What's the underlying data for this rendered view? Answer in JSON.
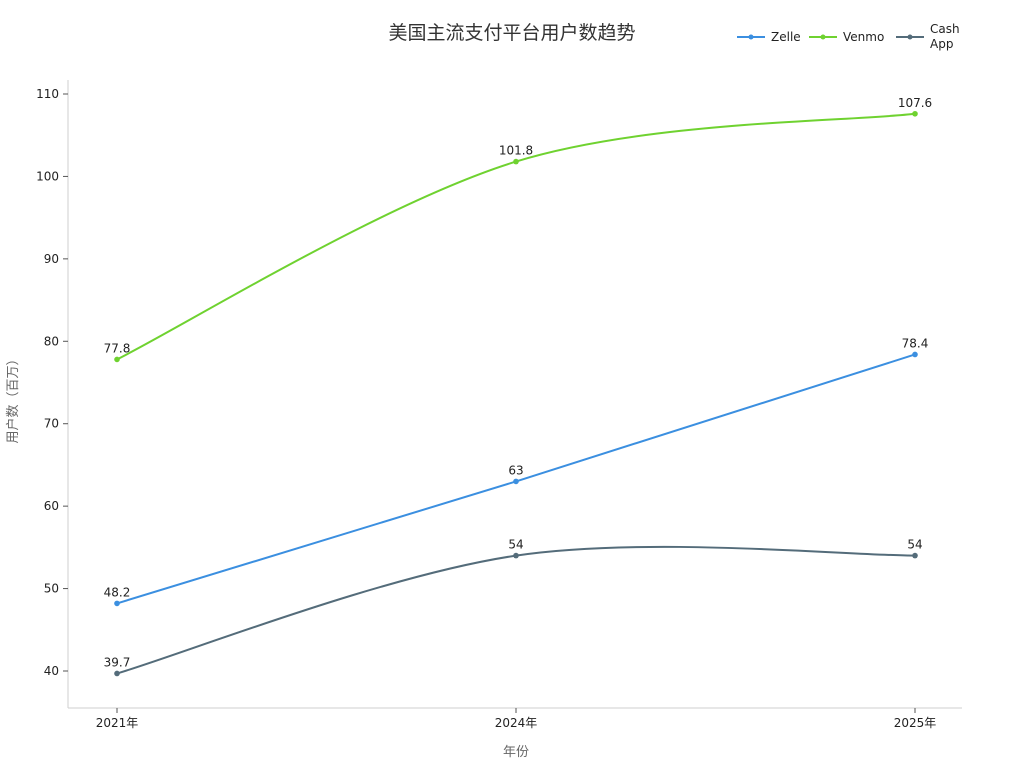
{
  "chart_data": {
    "type": "line",
    "title": "美国主流支付平台用户数趋势",
    "xlabel": "年份",
    "ylabel": "用户数（百万）",
    "categories": [
      "2021年",
      "2024年",
      "2025年"
    ],
    "ylim": [
      35,
      112
    ],
    "yticks": [
      40,
      50,
      60,
      70,
      80,
      90,
      100,
      110
    ],
    "grid": false,
    "legend_position": "top-right",
    "series": [
      {
        "name": "Zelle",
        "values": [
          48.2,
          63,
          78.4
        ],
        "color": "#3b8fe0",
        "smooth": false
      },
      {
        "name": "Venmo",
        "values": [
          77.8,
          101.8,
          107.6
        ],
        "color": "#6fd230",
        "smooth": true
      },
      {
        "name": "Cash App",
        "values": [
          39.7,
          54,
          54
        ],
        "color": "#546c7a",
        "smooth": true
      }
    ]
  }
}
